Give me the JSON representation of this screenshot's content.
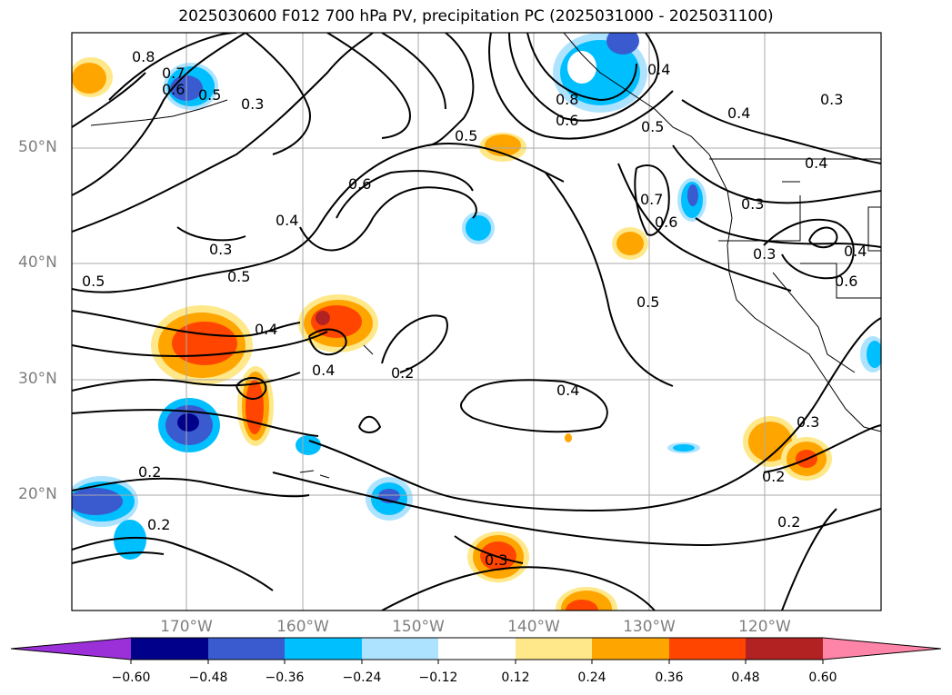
{
  "title": "2025030600 F012 700 hPa PV, precipitation PC (2025031000 - 2025031100)",
  "lat_labels": [
    "50°N",
    "40°N",
    "30°N",
    "20°N"
  ],
  "lon_labels": [
    "170°W",
    "160°W",
    "150°W",
    "140°W",
    "130°W",
    "120°W"
  ],
  "colorbar": {
    "colors": [
      "#9b30d9",
      "#00008b",
      "#3a5bd0",
      "#00bfff",
      "#aee3ff",
      "#ffffff",
      "#ffe88a",
      "#ffa500",
      "#ff4500",
      "#b22222",
      "#ff85a8"
    ],
    "tick_labels": [
      "−0.60",
      "−0.48",
      "−0.36",
      "−0.24",
      "−0.12",
      "0.12",
      "0.24",
      "0.36",
      "0.48",
      "0.60"
    ]
  },
  "contour_labels": [
    "0.8",
    "0.7",
    "0.6",
    "0.5",
    "0.3",
    "0.4",
    "0.8",
    "0.6",
    "0.5",
    "0.4",
    "0.4",
    "0.3",
    "0.4",
    "0.6",
    "0.5",
    "0.3",
    "0.7",
    "0.6",
    "0.3",
    "0.4",
    "0.5",
    "0.5",
    "0.6",
    "0.5",
    "0.4",
    "0.4",
    "0.2",
    "0.4",
    "0.3",
    "0.2",
    "0.2",
    "0.2",
    "0.2",
    "0.3",
    "0.3"
  ]
}
